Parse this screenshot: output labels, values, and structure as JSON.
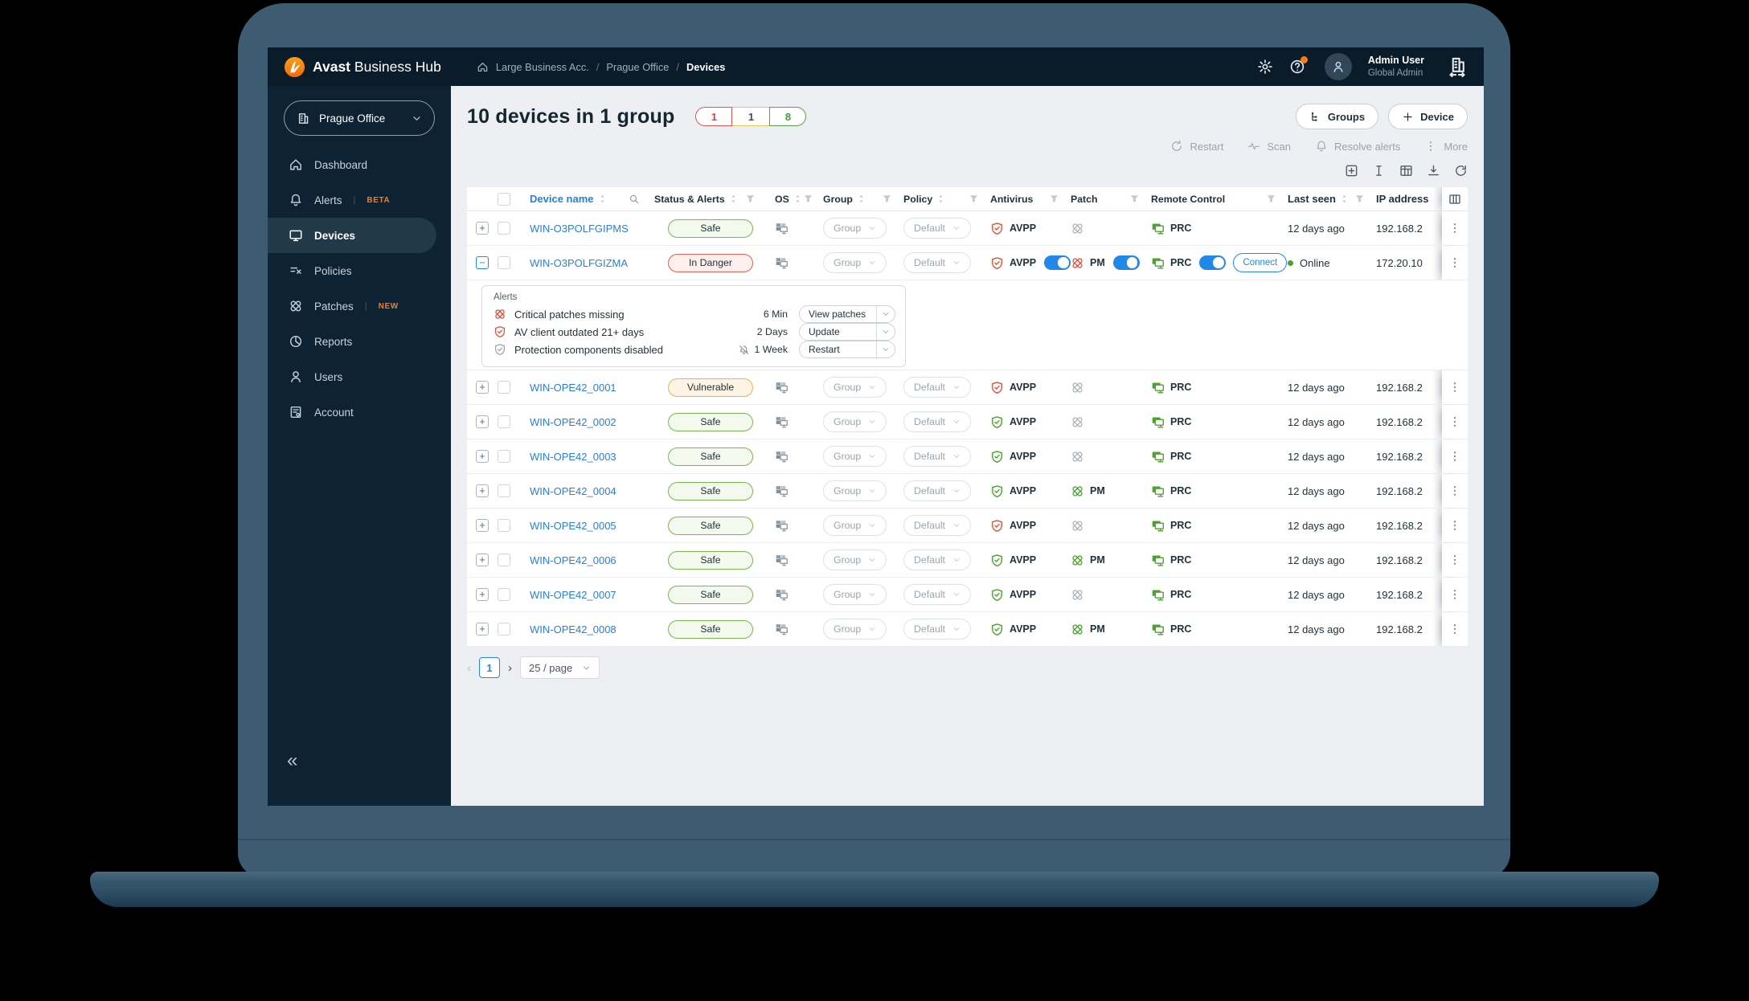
{
  "theme": {
    "accent_orange": "#f57d17",
    "link_blue": "#2a7de1",
    "ok_green": "#4aa32c",
    "danger_red": "#e2503a",
    "warn_amber": "#e9b34a",
    "toggle_blue": "#2188e8",
    "header_bg": "#0a1c2a",
    "sidebar_bg": "#0d2333",
    "page_bg": "#edeff2"
  },
  "header": {
    "brand_bold": "Avast",
    "brand_rest": "Business Hub",
    "breadcrumb": [
      "Large Business Acc.",
      "Prague Office",
      "Devices"
    ],
    "user_name": "Admin User",
    "user_role": "Global Admin"
  },
  "sidebar": {
    "selector_label": "Prague Office",
    "items": [
      {
        "label": "Dashboard",
        "icon": "home"
      },
      {
        "label": "Alerts",
        "icon": "bell",
        "badge": "BETA"
      },
      {
        "label": "Devices",
        "icon": "monitor",
        "active": true
      },
      {
        "label": "Policies",
        "icon": "policies"
      },
      {
        "label": "Patches",
        "icon": "patch",
        "badge": "NEW"
      },
      {
        "label": "Reports",
        "icon": "pie"
      },
      {
        "label": "Users",
        "icon": "user"
      },
      {
        "label": "Account",
        "icon": "account"
      }
    ],
    "collapse_glyph": "«"
  },
  "page": {
    "title": "10 devices in 1 group",
    "counters": [
      {
        "value": "1",
        "type": "danger"
      },
      {
        "value": "1",
        "type": "warning"
      },
      {
        "value": "8",
        "type": "ok"
      }
    ],
    "groups_button": "Groups",
    "device_button": "Device",
    "toolbar": [
      {
        "label": "Restart",
        "icon": "restart"
      },
      {
        "label": "Scan",
        "icon": "scan"
      },
      {
        "label": "Resolve alerts",
        "icon": "bell"
      },
      {
        "label": "More",
        "icon": "kebab"
      }
    ],
    "table_tools": [
      "insert-row",
      "text-cursor",
      "table-grid",
      "export",
      "refresh"
    ],
    "pagination": {
      "prev": "‹",
      "page": "1",
      "next": "›",
      "page_size": "25 / page"
    }
  },
  "table": {
    "columns": [
      {
        "label": "Device name",
        "sort": true,
        "search": true
      },
      {
        "label": "Status & Alerts",
        "sort": true,
        "filter": true
      },
      {
        "label": "OS",
        "sort": true,
        "filter": true
      },
      {
        "label": "Group",
        "sort": true,
        "filter": true
      },
      {
        "label": "Policy",
        "sort": true,
        "filter": true
      },
      {
        "label": "Antivirus",
        "filter": true
      },
      {
        "label": "Patch",
        "filter": true
      },
      {
        "label": "Remote Control",
        "filter": true
      },
      {
        "label": "Last seen",
        "sort": true,
        "filter": true
      },
      {
        "label": "IP address"
      }
    ],
    "labels": {
      "group": "Group",
      "policy": "Default",
      "antivirus": "AVPP",
      "patch": "PM",
      "remote": "PRC",
      "connect": "Connect"
    },
    "rows": [
      {
        "name": "WIN-O3POLFGIPMS",
        "status": "Safe",
        "status_type": "safe",
        "av_state": "danger",
        "patch_state": "none",
        "last_seen": "12 days ago",
        "ip": "192.168.2"
      },
      {
        "name": "WIN-O3POLFGIZMA",
        "status": "In Danger",
        "status_type": "danger",
        "expanded": true,
        "av_state": "danger",
        "av_toggle": true,
        "patch_state": "danger",
        "patch_pm": true,
        "patch_toggle": true,
        "remote_toggle": true,
        "connect": true,
        "online": "Online",
        "ip": "172.20.10"
      },
      {
        "name": "WIN-OPE42_0001",
        "status": "Vulnerable",
        "status_type": "warning",
        "av_state": "danger",
        "patch_state": "none",
        "last_seen": "12 days ago",
        "ip": "192.168.2"
      },
      {
        "name": "WIN-OPE42_0002",
        "status": "Safe",
        "status_type": "safe",
        "av_state": "ok",
        "patch_state": "none",
        "last_seen": "12 days ago",
        "ip": "192.168.2"
      },
      {
        "name": "WIN-OPE42_0003",
        "status": "Safe",
        "status_type": "safe",
        "av_state": "ok",
        "patch_state": "none",
        "last_seen": "12 days ago",
        "ip": "192.168.2"
      },
      {
        "name": "WIN-OPE42_0004",
        "status": "Safe",
        "status_type": "safe",
        "av_state": "ok",
        "patch_state": "ok",
        "patch_pm": true,
        "last_seen": "12 days ago",
        "ip": "192.168.2"
      },
      {
        "name": "WIN-OPE42_0005",
        "status": "Safe",
        "status_type": "safe",
        "av_state": "danger",
        "patch_state": "none",
        "last_seen": "12 days ago",
        "ip": "192.168.2"
      },
      {
        "name": "WIN-OPE42_0006",
        "status": "Safe",
        "status_type": "safe",
        "av_state": "ok",
        "patch_state": "ok",
        "patch_pm": true,
        "last_seen": "12 days ago",
        "ip": "192.168.2"
      },
      {
        "name": "WIN-OPE42_0007",
        "status": "Safe",
        "status_type": "safe",
        "av_state": "ok",
        "patch_state": "none",
        "last_seen": "12 days ago",
        "ip": "192.168.2"
      },
      {
        "name": "WIN-OPE42_0008",
        "status": "Safe",
        "status_type": "safe",
        "av_state": "ok",
        "patch_state": "ok",
        "patch_pm": true,
        "last_seen": "12 days ago",
        "ip": "192.168.2"
      }
    ]
  },
  "alerts_panel": {
    "title": "Alerts",
    "items": [
      {
        "icon": "patch",
        "tone": "danger",
        "text": "Critical patches missing",
        "age": "6 Min",
        "action": "View patches"
      },
      {
        "icon": "shield",
        "tone": "danger",
        "text": "AV client outdated 21+ days",
        "age": "2 Days",
        "action": "Update"
      },
      {
        "icon": "shield",
        "tone": "muted",
        "text": "Protection components disabled",
        "age": "1 Week",
        "bell_off": true,
        "action": "Restart"
      }
    ]
  }
}
